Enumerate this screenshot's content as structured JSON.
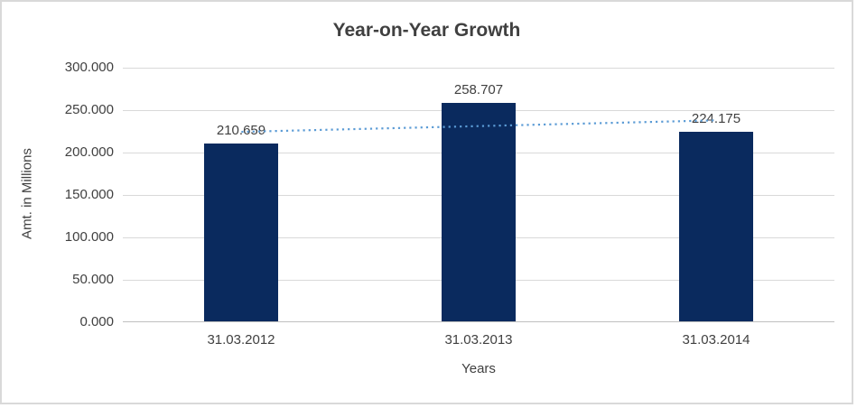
{
  "chart_data": {
    "type": "bar",
    "title": "Year-on-Year Growth",
    "categories": [
      "31.03.2012",
      "31.03.2013",
      "31.03.2014"
    ],
    "values": [
      210.659,
      258.707,
      224.175
    ],
    "data_labels": [
      "210.659",
      "258.707",
      "224.175"
    ],
    "xlabel": "Years",
    "ylabel": "Amt. in Millions",
    "ylim": [
      0,
      300
    ],
    "ytick_step": 50,
    "ytick_labels": [
      "0.000",
      "50.000",
      "100.000",
      "150.000",
      "200.000",
      "250.000",
      "300.000"
    ],
    "grid": true,
    "legend_position": "none",
    "trendline": {
      "type": "linear",
      "style": "dotted"
    },
    "colors": {
      "bar": "#0a2a5e",
      "trendline": "#5b9bd5",
      "gridline": "#d9d9d9",
      "axis_line": "#bfbfbf",
      "text": "#404040",
      "background": "#ffffff",
      "canvas_border": "#d9d9d9"
    }
  }
}
